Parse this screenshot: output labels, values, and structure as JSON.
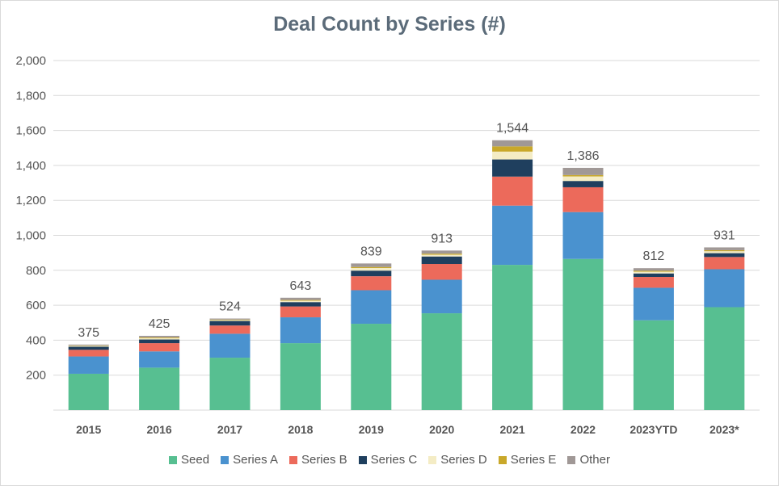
{
  "chart_data": {
    "type": "bar",
    "stacked": true,
    "title": "Deal Count by Series (#)",
    "xlabel": "",
    "ylabel": "",
    "ylim": [
      0,
      2000
    ],
    "yticks": [
      200,
      400,
      600,
      800,
      1000,
      1200,
      1400,
      1600,
      1800,
      2000
    ],
    "ytick_labels": [
      "200",
      "400",
      "600",
      "800",
      "1,000",
      "1,200",
      "1,400",
      "1,600",
      "1,800",
      "2,000"
    ],
    "grid": true,
    "legend_position": "bottom",
    "categories": [
      "2015",
      "2016",
      "2017",
      "2018",
      "2019",
      "2020",
      "2021",
      "2022",
      "2023YTD",
      "2023*"
    ],
    "totals": [
      "375",
      "425",
      "524",
      "643",
      "839",
      "913",
      "1,544",
      "1,386",
      "812",
      "931"
    ],
    "series": [
      {
        "name": "Seed",
        "color": "#57bf91",
        "values": [
          208,
          243,
          300,
          383,
          494,
          554,
          831,
          865,
          514,
          589
        ]
      },
      {
        "name": "Series A",
        "color": "#4a92cf",
        "values": [
          99,
          93,
          137,
          148,
          192,
          192,
          339,
          268,
          186,
          217
        ]
      },
      {
        "name": "Series B",
        "color": "#ec6a5b",
        "values": [
          38,
          47,
          47,
          62,
          80,
          90,
          166,
          142,
          62,
          70
        ]
      },
      {
        "name": "Series C",
        "color": "#1f3f5e",
        "values": [
          18,
          21,
          26,
          25,
          32,
          43,
          98,
          36,
          20,
          22
        ]
      },
      {
        "name": "Series D",
        "color": "#f4ecc5",
        "values": [
          5,
          8,
          5,
          8,
          15,
          10,
          45,
          26,
          10,
          11
        ]
      },
      {
        "name": "Series E",
        "color": "#c9a82a",
        "values": [
          2,
          4,
          3,
          4,
          6,
          6,
          30,
          8,
          5,
          6
        ]
      },
      {
        "name": "Other",
        "color": "#a09896",
        "values": [
          5,
          9,
          6,
          13,
          20,
          18,
          35,
          41,
          15,
          16
        ]
      }
    ]
  }
}
